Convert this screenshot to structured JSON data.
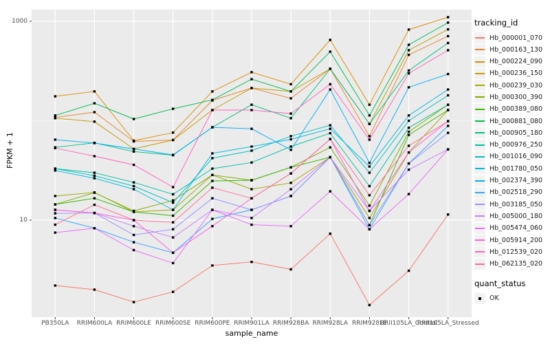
{
  "chart_data": {
    "type": "line",
    "title": "",
    "xlabel": "sample_name",
    "ylabel": "FPKM + 1",
    "y_scale": "log10",
    "ylim": [
      1.05,
      1300
    ],
    "grid": true,
    "legend_position": "right",
    "legend_tracking_title": "tracking_id",
    "legend_quant_title": "quant_status",
    "quant_status_label": "OK",
    "y_breaks": [
      {
        "value": 1000,
        "label": "1000"
      },
      {
        "value": 10,
        "label": "10"
      }
    ],
    "y_minor_breaks": [
      100
    ],
    "categories": [
      "PB350LA",
      "RRIM600LA",
      "RRIM600LE",
      "RRIM600SE",
      "RRIM600PE",
      "RRIM901LA",
      "RRIM928BA",
      "RRIM928LA",
      "RRIM928LE",
      "RRII105LA_Control",
      "RRII105LA_Stressed"
    ],
    "series": [
      {
        "name": "Hb_000001_070",
        "color": "#F8766D",
        "values": [
          2.2,
          2.0,
          1.5,
          1.9,
          3.5,
          3.8,
          3.2,
          7.3,
          1.4,
          3.1,
          11.4
        ]
      },
      {
        "name": "Hb_000163_130",
        "color": "#EA8331",
        "values": [
          108,
          122,
          62,
          64,
          160,
          213,
          168,
          333,
          70,
          460,
          710
        ]
      },
      {
        "name": "Hb_000224_090",
        "color": "#D89000",
        "values": [
          176,
          197,
          63,
          76,
          197,
          308,
          233,
          650,
          145,
          826,
          1100
        ]
      },
      {
        "name": "Hb_000236_150",
        "color": "#C09B00",
        "values": [
          106,
          98,
          52,
          64,
          128,
          213,
          197,
          333,
          93,
          512,
          830
        ]
      },
      {
        "name": "Hb_000239_030",
        "color": "#A3A500",
        "values": [
          17.5,
          19,
          12.1,
          12.7,
          28.5,
          20.5,
          23.7,
          43,
          10.5,
          48,
          128
        ]
      },
      {
        "name": "Hb_000300_390",
        "color": "#7CAE00",
        "values": [
          14.4,
          18.9,
          12.4,
          15.8,
          28.5,
          25.2,
          34,
          54,
          14,
          77.5,
          145
        ]
      },
      {
        "name": "Hb_000389_080",
        "color": "#39B600",
        "values": [
          14.4,
          16.6,
          12.1,
          11.1,
          24.8,
          25.2,
          34,
          43,
          8.9,
          72,
          128
        ]
      },
      {
        "name": "Hb_000881_080",
        "color": "#00BB4E",
        "values": [
          113,
          150,
          104,
          132,
          162,
          262,
          197,
          495,
          113,
          581,
          970
        ]
      },
      {
        "name": "Hb_000905_180",
        "color": "#00BF7D",
        "values": [
          54,
          60,
          49,
          45,
          86,
          145,
          106,
          333,
          93,
          320,
          605
        ]
      },
      {
        "name": "Hb_000976_250",
        "color": "#00C1A3",
        "values": [
          33,
          30,
          24,
          18.2,
          33,
          38,
          55,
          75,
          22,
          85,
          145
        ]
      },
      {
        "name": "Hb_001016_090",
        "color": "#00BFC4",
        "values": [
          33,
          28,
          22,
          15,
          42,
          50,
          70,
          90,
          30,
          100,
          180
        ]
      },
      {
        "name": "Hb_001780_050",
        "color": "#00BAE0",
        "values": [
          31.6,
          26.4,
          20.5,
          12.7,
          47,
          55,
          65,
          83,
          34.6,
          113,
          206
        ]
      },
      {
        "name": "Hb_002374_390",
        "color": "#00B0F6",
        "values": [
          64.5,
          59.6,
          52,
          45.4,
          86,
          83,
          51,
          206,
          37.7,
          217,
          295
        ]
      },
      {
        "name": "Hb_002518_290",
        "color": "#35A2FF",
        "values": [
          10.5,
          8.3,
          6.0,
          4.7,
          10.3,
          12.7,
          17.5,
          43,
          8.1,
          37.2,
          88.7
        ]
      },
      {
        "name": "Hb_003185_050",
        "color": "#9590FF",
        "values": [
          11.7,
          11.8,
          7.1,
          8.1,
          16.6,
          12.7,
          17.5,
          43,
          8.9,
          37.2,
          75.5
        ]
      },
      {
        "name": "Hb_005000_180",
        "color": "#C77CFF",
        "values": [
          12.7,
          11.8,
          8.7,
          6.7,
          12.7,
          10.5,
          20.5,
          43,
          12.4,
          32.2,
          51.5
        ]
      },
      {
        "name": "Hb_005474_060",
        "color": "#E76BF3",
        "values": [
          7.5,
          8.3,
          5.0,
          3.7,
          12.7,
          9.0,
          8.7,
          19.5,
          8.1,
          18.3,
          51.5
        ]
      },
      {
        "name": "Hb_005914_200",
        "color": "#FA62DB",
        "values": [
          12.7,
          11.8,
          10,
          4.7,
          8.7,
          16.6,
          29.5,
          65.5,
          12.4,
          48,
          99
        ]
      },
      {
        "name": "Hb_012539_020",
        "color": "#FF62BC",
        "values": [
          53,
          44,
          36,
          21.5,
          128,
          128,
          118,
          233,
          64.5,
          300,
          512
        ]
      },
      {
        "name": "Hb_062135_020",
        "color": "#FF6A98",
        "values": [
          9.0,
          14.3,
          10,
          9.5,
          21.2,
          16.6,
          29.5,
          65.5,
          17.8,
          56,
          99
        ]
      }
    ],
    "panel_bg": "#EBEBEB",
    "grid_color": "#FFFFFF",
    "tick_color": "#333333",
    "point_color": "#000000"
  }
}
